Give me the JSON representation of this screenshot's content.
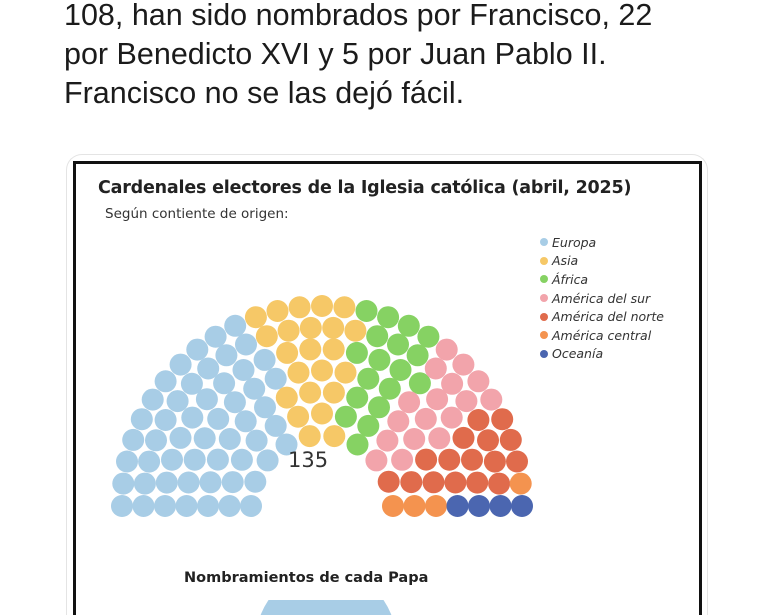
{
  "tweet": {
    "lines": [
      "108, han sido nombrados por Francisco, 22",
      "por Benedicto XVI y 5 por Juan Pablo II.",
      "Francisco no se las dejó fácil."
    ]
  },
  "chart_data": {
    "type": "hemicycle",
    "title": "Cardenales electores de la Iglesia católica (abril, 2025)",
    "subtitle": "Según contiente de origen:",
    "total_label": "135",
    "total_seats": 135,
    "series": [
      {
        "name": "Europa",
        "value": 53,
        "color": "#a8cde6"
      },
      {
        "name": "Asia",
        "value": 23,
        "color": "#f6c867"
      },
      {
        "name": "África",
        "value": 18,
        "color": "#86d263"
      },
      {
        "name": "América del sur",
        "value": 17,
        "color": "#f2a4ab"
      },
      {
        "name": "América del norte",
        "value": 16,
        "color": "#e06b4c"
      },
      {
        "name": "América central",
        "value": 4,
        "color": "#f4934f"
      },
      {
        "name": "Oceanía",
        "value": 4,
        "color": "#4b66b0"
      }
    ],
    "legend_position": "top-right",
    "empty_seat_color": "#ffffff",
    "section2_title": "Nombramientos de cada Papa"
  }
}
